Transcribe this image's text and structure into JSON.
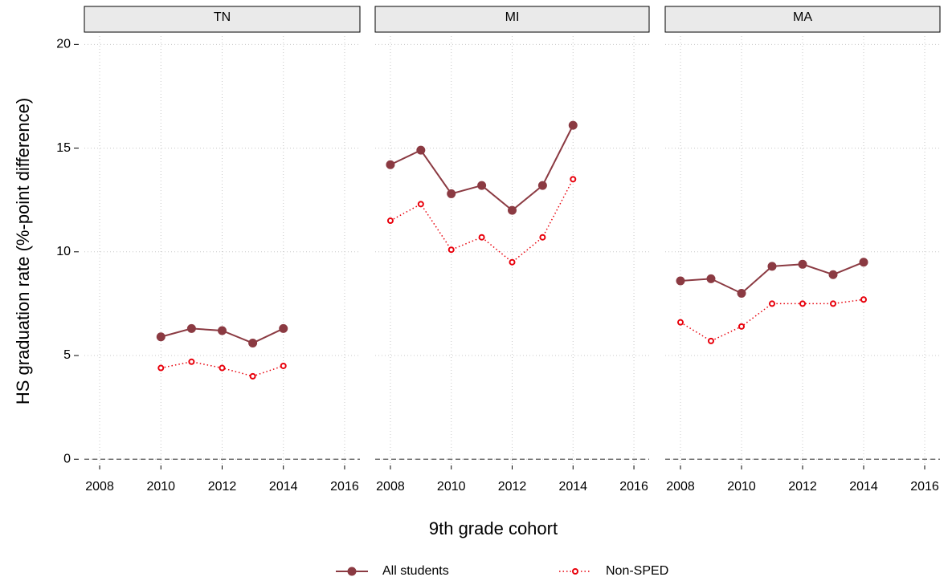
{
  "chart_data": {
    "type": "line",
    "ylabel": "HS graduation rate (%-point difference)",
    "xlabel": "9th grade cohort",
    "xlim": [
      2007.5,
      2016.5
    ],
    "xticks": [
      2008,
      2010,
      2012,
      2014,
      2016
    ],
    "ylim": [
      -0.3,
      20.4
    ],
    "yticks": [
      0,
      5,
      10,
      15,
      20
    ],
    "grid": true,
    "series": [
      {
        "name": "All students",
        "color": "#8b3a42"
      },
      {
        "name": "Non-SPED",
        "color": "#e8000b"
      }
    ],
    "panels": [
      {
        "title": "TN",
        "x": [
          2010,
          2011,
          2012,
          2013,
          2014
        ],
        "values": [
          [
            5.9,
            6.3,
            6.2,
            5.6,
            6.3
          ],
          [
            4.4,
            4.7,
            4.4,
            4.0,
            4.5
          ]
        ]
      },
      {
        "title": "MI",
        "x": [
          2008,
          2009,
          2010,
          2011,
          2012,
          2013,
          2014
        ],
        "values": [
          [
            14.2,
            14.9,
            12.8,
            13.2,
            12.0,
            13.2,
            16.1
          ],
          [
            11.5,
            12.3,
            10.1,
            10.7,
            9.5,
            10.7,
            13.5
          ]
        ]
      },
      {
        "title": "MA",
        "x": [
          2008,
          2009,
          2010,
          2011,
          2012,
          2013,
          2014
        ],
        "values": [
          [
            8.6,
            8.7,
            8.0,
            9.3,
            9.4,
            8.9,
            9.5
          ],
          [
            6.6,
            5.7,
            6.4,
            7.5,
            7.5,
            7.5,
            7.7
          ]
        ]
      }
    ]
  }
}
